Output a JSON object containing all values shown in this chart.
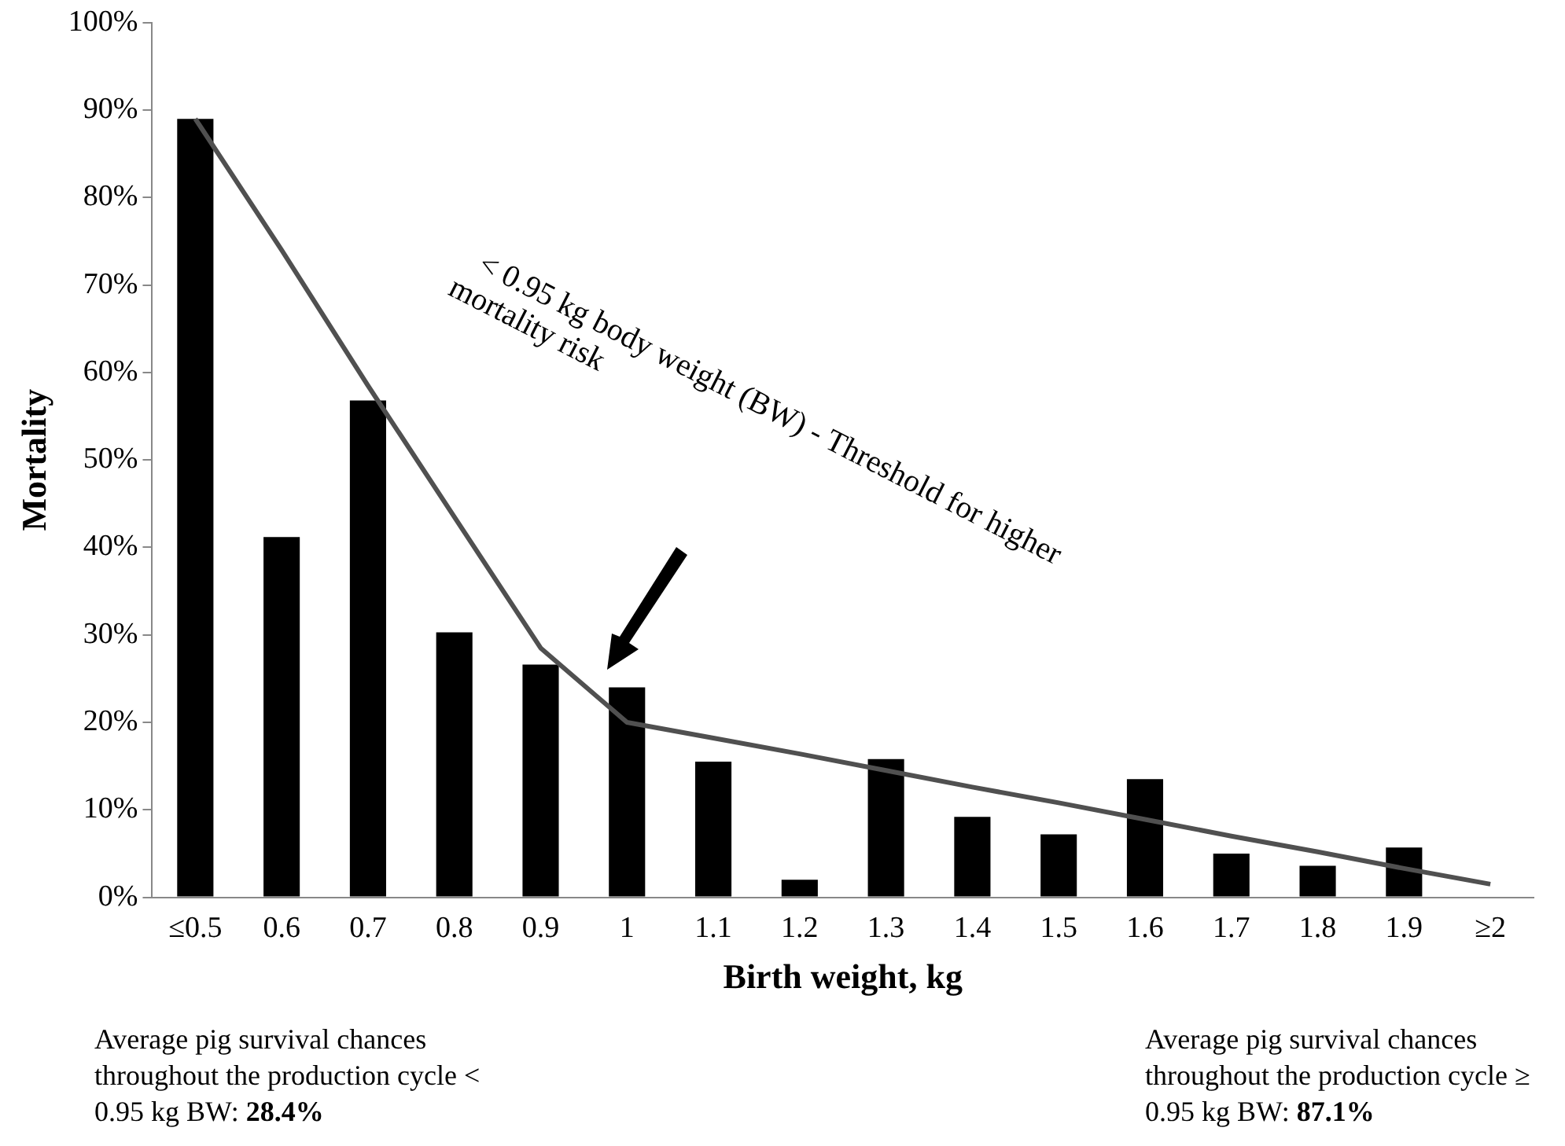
{
  "chart_data": {
    "type": "bar",
    "xlabel": "Birth weight, kg",
    "ylabel": "Mortality",
    "categories": [
      "≤0.5",
      "0.6",
      "0.7",
      "0.8",
      "0.9",
      "1",
      "1.1",
      "1.2",
      "1.3",
      "1.4",
      "1.5",
      "1.6",
      "1.7",
      "1.8",
      "1.9",
      "≥2"
    ],
    "ylim": [
      0,
      100
    ],
    "yticks": [
      {
        "value": 0,
        "label": "0%"
      },
      {
        "value": 10,
        "label": "10%"
      },
      {
        "value": 20,
        "label": "20%"
      },
      {
        "value": 30,
        "label": "30%"
      },
      {
        "value": 40,
        "label": "40%"
      },
      {
        "value": 50,
        "label": "50%"
      },
      {
        "value": 60,
        "label": "60%"
      },
      {
        "value": 70,
        "label": "70%"
      },
      {
        "value": 80,
        "label": "80%"
      },
      {
        "value": 90,
        "label": "90%"
      },
      {
        "value": 100,
        "label": "100%"
      }
    ],
    "series": [
      {
        "color": "#000000",
        "values": [
          89,
          41.2,
          56.8,
          30.3,
          26.6,
          24.0,
          15.5,
          2.0,
          15.8,
          9.2,
          7.2,
          13.5,
          5.0,
          3.6,
          5.7,
          null
        ]
      },
      {
        "type": "line",
        "color": "#505050",
        "values": [
          89,
          74,
          58.5,
          43.5,
          28.5,
          20,
          18.2,
          16.4,
          14.5,
          12.6,
          10.8,
          8.9,
          7.0,
          5.2,
          3.3,
          1.5
        ]
      }
    ],
    "annotations": [
      "< 0.95 kg body weight (BW) - Threshold for higher mortality risk",
      "Average pig survival chances throughout the production cycle < 0.95 kg BW: 28.4%",
      "Average pig survival chances throughout the production cycle ≥ 0.95 kg BW: 87.1%"
    ],
    "grid": false,
    "legend": false
  }
}
